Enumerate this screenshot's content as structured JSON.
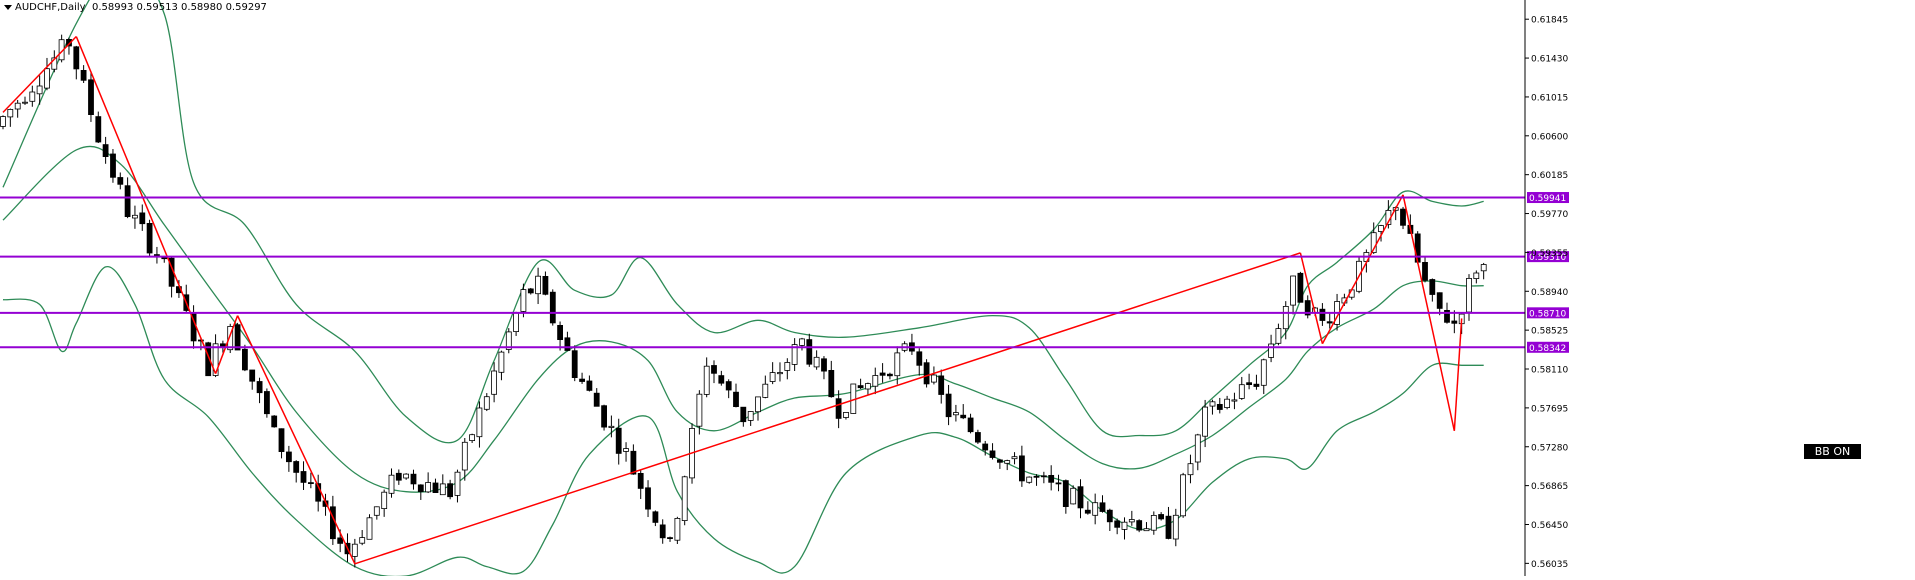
{
  "header": {
    "symbol_label": "AUDCHF,Daily",
    "ohlc_label": "0.58993 0.59513 0.58980 0.59297"
  },
  "badge": {
    "label": "BB ON"
  },
  "colors": {
    "candle_bull": "#ffffff",
    "candle_bear": "#000000",
    "bollinger": "#2e8b57",
    "zigzag": "#ff0000",
    "level_line": "#9400d3",
    "level_label_bg": "#9400d3",
    "axis": "#000000"
  },
  "chart_data": {
    "type": "candlestick",
    "symbol": "AUDCHF",
    "timeframe": "Daily",
    "ylim": [
      0.559,
      0.6205
    ],
    "yticks": [
      "0.61845",
      "0.61430",
      "0.61015",
      "0.60600",
      "0.60185",
      "0.59770",
      "0.59355",
      "0.58940",
      "0.58525",
      "0.58110",
      "0.57695",
      "0.57280",
      "0.56865",
      "0.56450",
      "0.56035"
    ],
    "horizontal_levels": [
      {
        "value": 0.59941,
        "label": "0.59941"
      },
      {
        "value": 0.5931,
        "label": "0.59310"
      },
      {
        "value": 0.5871,
        "label": "0.58710"
      },
      {
        "value": 0.58342,
        "label": "0.58342"
      }
    ],
    "zigzag": [
      {
        "bar": 0,
        "price": 0.6085
      },
      {
        "bar": 10,
        "price": 0.6166
      },
      {
        "bar": 29,
        "price": 0.5806
      },
      {
        "bar": 32,
        "price": 0.5868
      },
      {
        "bar": 48,
        "price": 0.5603
      },
      {
        "bar": 177,
        "price": 0.5935
      },
      {
        "bar": 180,
        "price": 0.5838
      },
      {
        "bar": 191,
        "price": 0.5997
      },
      {
        "bar": 198,
        "price": 0.5745
      },
      {
        "bar": 199,
        "price": 0.5865
      }
    ],
    "pivots": [
      {
        "bar": 0,
        "price": 0.607
      },
      {
        "bar": 10,
        "price": 0.616
      },
      {
        "bar": 14,
        "price": 0.606
      },
      {
        "bar": 18,
        "price": 0.598
      },
      {
        "bar": 22,
        "price": 0.5935
      },
      {
        "bar": 29,
        "price": 0.5815
      },
      {
        "bar": 32,
        "price": 0.586
      },
      {
        "bar": 38,
        "price": 0.574
      },
      {
        "bar": 48,
        "price": 0.5615
      },
      {
        "bar": 55,
        "price": 0.57
      },
      {
        "bar": 62,
        "price": 0.568
      },
      {
        "bar": 72,
        "price": 0.589
      },
      {
        "bar": 74,
        "price": 0.59
      },
      {
        "bar": 79,
        "price": 0.581
      },
      {
        "bar": 86,
        "price": 0.572
      },
      {
        "bar": 92,
        "price": 0.562
      },
      {
        "bar": 97,
        "price": 0.582
      },
      {
        "bar": 102,
        "price": 0.576
      },
      {
        "bar": 110,
        "price": 0.584
      },
      {
        "bar": 115,
        "price": 0.577
      },
      {
        "bar": 125,
        "price": 0.5835
      },
      {
        "bar": 130,
        "price": 0.5765
      },
      {
        "bar": 140,
        "price": 0.57
      },
      {
        "bar": 150,
        "price": 0.566
      },
      {
        "bar": 160,
        "price": 0.564
      },
      {
        "bar": 165,
        "price": 0.576
      },
      {
        "bar": 172,
        "price": 0.58
      },
      {
        "bar": 177,
        "price": 0.59
      },
      {
        "bar": 181,
        "price": 0.586
      },
      {
        "bar": 186,
        "price": 0.5915
      },
      {
        "bar": 191,
        "price": 0.599
      },
      {
        "bar": 196,
        "price": 0.588
      },
      {
        "bar": 199,
        "price": 0.586
      },
      {
        "bar": 202,
        "price": 0.592
      }
    ],
    "bands": {
      "upper": [
        [
          0,
          0.6005
        ],
        [
          10,
          0.618
        ],
        [
          16,
          0.624
        ],
        [
          22,
          0.619
        ],
        [
          26,
          0.601
        ],
        [
          33,
          0.5965
        ],
        [
          40,
          0.588
        ],
        [
          48,
          0.583
        ],
        [
          55,
          0.576
        ],
        [
          62,
          0.5735
        ],
        [
          67,
          0.582
        ],
        [
          73,
          0.5925
        ],
        [
          78,
          0.5895
        ],
        [
          83,
          0.589
        ],
        [
          87,
          0.593
        ],
        [
          92,
          0.588
        ],
        [
          97,
          0.585
        ],
        [
          103,
          0.5863
        ],
        [
          108,
          0.585
        ],
        [
          115,
          0.5845
        ],
        [
          125,
          0.5855
        ],
        [
          135,
          0.5868
        ],
        [
          140,
          0.5855
        ],
        [
          145,
          0.58
        ],
        [
          150,
          0.5745
        ],
        [
          155,
          0.574
        ],
        [
          160,
          0.5745
        ],
        [
          165,
          0.578
        ],
        [
          170,
          0.5815
        ],
        [
          175,
          0.585
        ],
        [
          178,
          0.59
        ],
        [
          182,
          0.5925
        ],
        [
          187,
          0.596
        ],
        [
          191,
          0.6
        ],
        [
          195,
          0.599
        ],
        [
          199,
          0.5985
        ],
        [
          202,
          0.599
        ]
      ],
      "middle": [
        [
          0,
          0.597
        ],
        [
          10,
          0.6045
        ],
        [
          16,
          0.603
        ],
        [
          22,
          0.5965
        ],
        [
          28,
          0.59
        ],
        [
          34,
          0.5835
        ],
        [
          40,
          0.5765
        ],
        [
          48,
          0.57
        ],
        [
          55,
          0.568
        ],
        [
          62,
          0.569
        ],
        [
          67,
          0.5735
        ],
        [
          73,
          0.58
        ],
        [
          78,
          0.5835
        ],
        [
          83,
          0.584
        ],
        [
          88,
          0.582
        ],
        [
          92,
          0.5765
        ],
        [
          97,
          0.5745
        ],
        [
          103,
          0.5765
        ],
        [
          108,
          0.578
        ],
        [
          115,
          0.5785
        ],
        [
          125,
          0.5805
        ],
        [
          130,
          0.5795
        ],
        [
          135,
          0.578
        ],
        [
          140,
          0.5765
        ],
        [
          145,
          0.5735
        ],
        [
          150,
          0.571
        ],
        [
          155,
          0.5705
        ],
        [
          160,
          0.572
        ],
        [
          165,
          0.574
        ],
        [
          170,
          0.577
        ],
        [
          175,
          0.58
        ],
        [
          178,
          0.583
        ],
        [
          182,
          0.5855
        ],
        [
          187,
          0.5875
        ],
        [
          191,
          0.59
        ],
        [
          195,
          0.5905
        ],
        [
          199,
          0.59
        ],
        [
          202,
          0.59
        ]
      ],
      "lower": [
        [
          0,
          0.5885
        ],
        [
          5,
          0.588
        ],
        [
          8,
          0.583
        ],
        [
          10,
          0.586
        ],
        [
          14,
          0.592
        ],
        [
          18,
          0.588
        ],
        [
          22,
          0.58
        ],
        [
          28,
          0.576
        ],
        [
          34,
          0.57
        ],
        [
          40,
          0.565
        ],
        [
          48,
          0.56
        ],
        [
          55,
          0.559
        ],
        [
          62,
          0.561
        ],
        [
          66,
          0.56
        ],
        [
          71,
          0.5595
        ],
        [
          75,
          0.5645
        ],
        [
          80,
          0.572
        ],
        [
          88,
          0.576
        ],
        [
          92,
          0.568
        ],
        [
          97,
          0.563
        ],
        [
          103,
          0.5605
        ],
        [
          108,
          0.56
        ],
        [
          115,
          0.57
        ],
        [
          125,
          0.574
        ],
        [
          130,
          0.5738
        ],
        [
          135,
          0.5718
        ],
        [
          140,
          0.57
        ],
        [
          145,
          0.569
        ],
        [
          150,
          0.566
        ],
        [
          155,
          0.564
        ],
        [
          160,
          0.565
        ],
        [
          165,
          0.569
        ],
        [
          170,
          0.5715
        ],
        [
          175,
          0.5715
        ],
        [
          178,
          0.5705
        ],
        [
          182,
          0.5745
        ],
        [
          187,
          0.5765
        ],
        [
          191,
          0.5785
        ],
        [
          195,
          0.5815
        ],
        [
          199,
          0.5815
        ],
        [
          202,
          0.5815
        ]
      ]
    }
  }
}
